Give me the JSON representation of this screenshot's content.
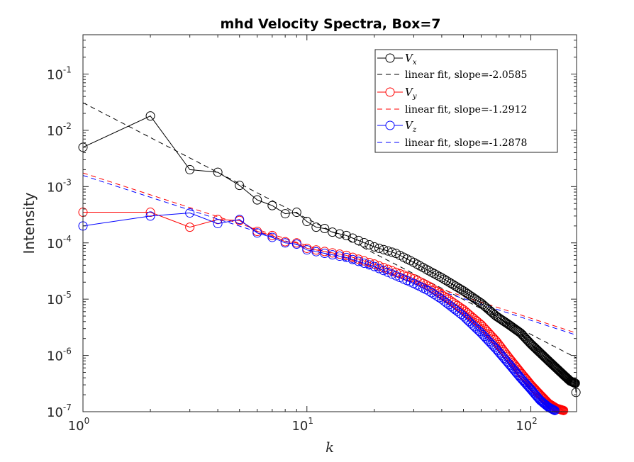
{
  "chart_data": {
    "type": "line",
    "title": "mhd Velocity Spectra, Box=7",
    "xlabel": "k",
    "ylabel": "Intensity",
    "xscale": "log",
    "yscale": "log",
    "xlim": [
      1,
      160
    ],
    "ylim": [
      1e-07,
      0.5
    ],
    "x_ticks": [
      {
        "base": "10",
        "exp": "0",
        "value": 1
      },
      {
        "base": "10",
        "exp": "1",
        "value": 10
      },
      {
        "base": "10",
        "exp": "2",
        "value": 100
      }
    ],
    "y_ticks": [
      {
        "base": "10",
        "exp": "-7",
        "value": 1e-07
      },
      {
        "base": "10",
        "exp": "-6",
        "value": 1e-06
      },
      {
        "base": "10",
        "exp": "-5",
        "value": 1e-05
      },
      {
        "base": "10",
        "exp": "-4",
        "value": 0.0001
      },
      {
        "base": "10",
        "exp": "-3",
        "value": 0.001
      },
      {
        "base": "10",
        "exp": "-2",
        "value": 0.01
      },
      {
        "base": "10",
        "exp": "-1",
        "value": 0.1
      }
    ],
    "grid": false,
    "legend_position": "top-right",
    "series": [
      {
        "key": "vx",
        "name": "V",
        "subscript": "x",
        "color": "#000000",
        "kmax": 159,
        "anchors": [
          [
            1,
            0.005
          ],
          [
            2,
            0.018
          ],
          [
            3,
            0.002
          ],
          [
            4,
            0.0018
          ],
          [
            5,
            0.00105
          ],
          [
            6,
            0.00058
          ],
          [
            7,
            0.00046
          ],
          [
            8,
            0.00033
          ],
          [
            9,
            0.00035
          ],
          [
            10,
            0.00024
          ],
          [
            11,
            0.00019
          ],
          [
            12,
            0.00018
          ],
          [
            13,
            0.000155
          ],
          [
            15,
            0.000135
          ],
          [
            20,
            8.5e-05
          ],
          [
            25,
            6.5e-05
          ],
          [
            30,
            4.5e-05
          ],
          [
            35,
            3.2e-05
          ],
          [
            40,
            2.4e-05
          ],
          [
            50,
            1.4e-05
          ],
          [
            60,
            8.5e-06
          ],
          [
            70,
            5e-06
          ],
          [
            80,
            3.5e-06
          ],
          [
            90,
            2.5e-06
          ],
          [
            100,
            1.6e-06
          ],
          [
            120,
            8e-07
          ],
          [
            140,
            4.5e-07
          ],
          [
            150,
            3.5e-07
          ],
          [
            158,
            3.2e-07
          ],
          [
            159,
            2.2e-07
          ]
        ]
      },
      {
        "key": "vy",
        "name": "V",
        "subscript": "y",
        "color": "#ff0000",
        "kmax": 140,
        "anchors": [
          [
            1,
            0.00035
          ],
          [
            2,
            0.00035
          ],
          [
            3,
            0.00019
          ],
          [
            4,
            0.00026
          ],
          [
            5,
            0.00025
          ],
          [
            6,
            0.00016
          ],
          [
            7,
            0.000135
          ],
          [
            8,
            0.000105
          ],
          [
            9,
            0.0001
          ],
          [
            10,
            8e-05
          ],
          [
            15,
            6e-05
          ],
          [
            20,
            4.2e-05
          ],
          [
            25,
            3e-05
          ],
          [
            30,
            2.3e-05
          ],
          [
            35,
            1.7e-05
          ],
          [
            40,
            1.2e-05
          ],
          [
            50,
            6.5e-06
          ],
          [
            60,
            3.5e-06
          ],
          [
            70,
            1.8e-06
          ],
          [
            80,
            9e-07
          ],
          [
            90,
            5e-07
          ],
          [
            100,
            3e-07
          ],
          [
            110,
            2e-07
          ],
          [
            120,
            1.4e-07
          ],
          [
            130,
            1.15e-07
          ],
          [
            140,
            1.05e-07
          ]
        ]
      },
      {
        "key": "vz",
        "name": "V",
        "subscript": "z",
        "color": "#0000ff",
        "kmax": 128,
        "anchors": [
          [
            1,
            0.0002
          ],
          [
            2,
            0.0003
          ],
          [
            3,
            0.00034
          ],
          [
            4,
            0.00022
          ],
          [
            5,
            0.00026
          ],
          [
            6,
            0.00015
          ],
          [
            7,
            0.000125
          ],
          [
            8,
            0.0001
          ],
          [
            9,
            9.5e-05
          ],
          [
            10,
            7.5e-05
          ],
          [
            15,
            5.5e-05
          ],
          [
            20,
            3.8e-05
          ],
          [
            25,
            2.6e-05
          ],
          [
            30,
            1.9e-05
          ],
          [
            35,
            1.4e-05
          ],
          [
            40,
            1e-05
          ],
          [
            50,
            5e-06
          ],
          [
            60,
            2.5e-06
          ],
          [
            70,
            1.3e-06
          ],
          [
            80,
            7e-07
          ],
          [
            90,
            4e-07
          ],
          [
            100,
            2.5e-07
          ],
          [
            110,
            1.6e-07
          ],
          [
            120,
            1.2e-07
          ],
          [
            128,
            1.05e-07
          ]
        ]
      }
    ],
    "fits": [
      {
        "key": "fit-vx",
        "label": "linear fit, slope=-2.0585",
        "slope": -2.0585,
        "intercept_at_k1": 0.031,
        "color": "#000000"
      },
      {
        "key": "fit-vy",
        "label": "linear fit, slope=-1.2912",
        "slope": -1.2912,
        "intercept_at_k1": 0.00175,
        "color": "#ff0000"
      },
      {
        "key": "fit-vz",
        "label": "linear fit, slope=-1.2878",
        "slope": -1.2878,
        "intercept_at_k1": 0.00158,
        "color": "#0000ff"
      }
    ]
  }
}
